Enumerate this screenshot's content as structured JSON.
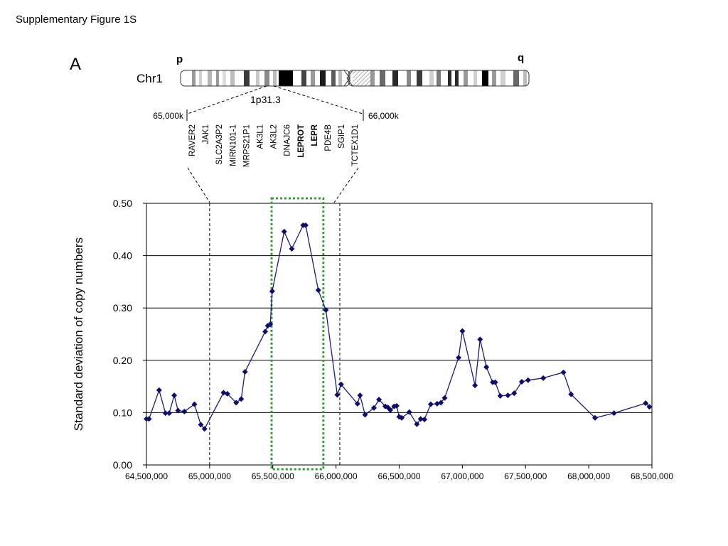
{
  "header": {
    "supplementary_label": "Supplementary Figure 1S"
  },
  "panel": {
    "letter": "A"
  },
  "chromosome": {
    "name": "Chr1",
    "p_arm": "p",
    "q_arm": "q",
    "band": "1p31.3",
    "region_start_label": "65,000k",
    "region_end_label": "66,000k",
    "genes": [
      {
        "name": "RAVER2",
        "bold": false
      },
      {
        "name": "JAK1",
        "bold": false
      },
      {
        "name": "SLC2A3P2",
        "bold": false
      },
      {
        "name": "MIRN101-1",
        "bold": false
      },
      {
        "name": "MRPS21P1",
        "bold": false
      },
      {
        "name": "AK3L1",
        "bold": false
      },
      {
        "name": "AK3L2",
        "bold": false
      },
      {
        "name": "DNAJC6",
        "bold": false
      },
      {
        "name": "LEPROT",
        "bold": true
      },
      {
        "name": "LEPR",
        "bold": true
      },
      {
        "name": "PDE4B",
        "bold": false
      },
      {
        "name": "SGIP1",
        "bold": false
      },
      {
        "name": "TCTEX1D1",
        "bold": false
      }
    ]
  },
  "colors": {
    "series": "#1a1a80",
    "marker": "#0d0d70",
    "highlight_box": "#2e9e2e",
    "grid": "#000000"
  },
  "chart_data": {
    "type": "line",
    "markers": "diamond",
    "title": "",
    "xlabel": "",
    "ylabel": "Standard deviation of copy numbers",
    "xlim": [
      64500000,
      68500000
    ],
    "ylim": [
      0.0,
      0.5
    ],
    "grid": "horizontal",
    "x_ticks": [
      64500000,
      65000000,
      65500000,
      66000000,
      66500000,
      67000000,
      67500000,
      68000000,
      68500000
    ],
    "x_tick_labels": [
      "64,500,000",
      "65,000,000",
      "65,500,000",
      "66,000,000",
      "66,500,000",
      "67,000,000",
      "67,500,000",
      "68,000,000",
      "68,500,000"
    ],
    "y_ticks": [
      0.0,
      0.1,
      0.2,
      0.3,
      0.4,
      0.5
    ],
    "y_tick_labels": [
      "0.00",
      "0.10",
      "0.20",
      "0.30",
      "0.40",
      "0.50"
    ],
    "vlines_dashed": [
      65000000,
      66030000
    ],
    "highlight_range": [
      65490000,
      65900000
    ],
    "x": [
      64500000,
      64520000,
      64600000,
      64650000,
      64680000,
      64720000,
      64750000,
      64800000,
      64880000,
      64930000,
      64960000,
      65110000,
      65140000,
      65210000,
      65250000,
      65280000,
      65440000,
      65460000,
      65480000,
      65495000,
      65590000,
      65650000,
      65740000,
      65760000,
      65860000,
      65920000,
      66010000,
      66040000,
      66170000,
      66190000,
      66230000,
      66300000,
      66340000,
      66390000,
      66410000,
      66430000,
      66460000,
      66480000,
      66500000,
      66520000,
      66580000,
      66640000,
      66670000,
      66700000,
      66750000,
      66800000,
      66830000,
      66860000,
      66970000,
      67000000,
      67100000,
      67140000,
      67190000,
      67240000,
      67260000,
      67300000,
      67360000,
      67410000,
      67470000,
      67520000,
      67640000,
      67800000,
      67860000,
      68050000,
      68200000,
      68450000,
      68480000
    ],
    "y": [
      0.088,
      0.088,
      0.143,
      0.099,
      0.099,
      0.133,
      0.104,
      0.102,
      0.116,
      0.077,
      0.069,
      0.138,
      0.136,
      0.119,
      0.126,
      0.178,
      0.255,
      0.266,
      0.269,
      0.332,
      0.446,
      0.413,
      0.458,
      0.458,
      0.334,
      0.296,
      0.134,
      0.154,
      0.117,
      0.133,
      0.096,
      0.109,
      0.125,
      0.112,
      0.11,
      0.105,
      0.112,
      0.113,
      0.092,
      0.09,
      0.101,
      0.078,
      0.088,
      0.087,
      0.116,
      0.117,
      0.119,
      0.128,
      0.205,
      0.256,
      0.152,
      0.24,
      0.187,
      0.158,
      0.158,
      0.132,
      0.133,
      0.137,
      0.159,
      0.162,
      0.166,
      0.177,
      0.135,
      0.09,
      0.099,
      0.118,
      0.111
    ]
  }
}
